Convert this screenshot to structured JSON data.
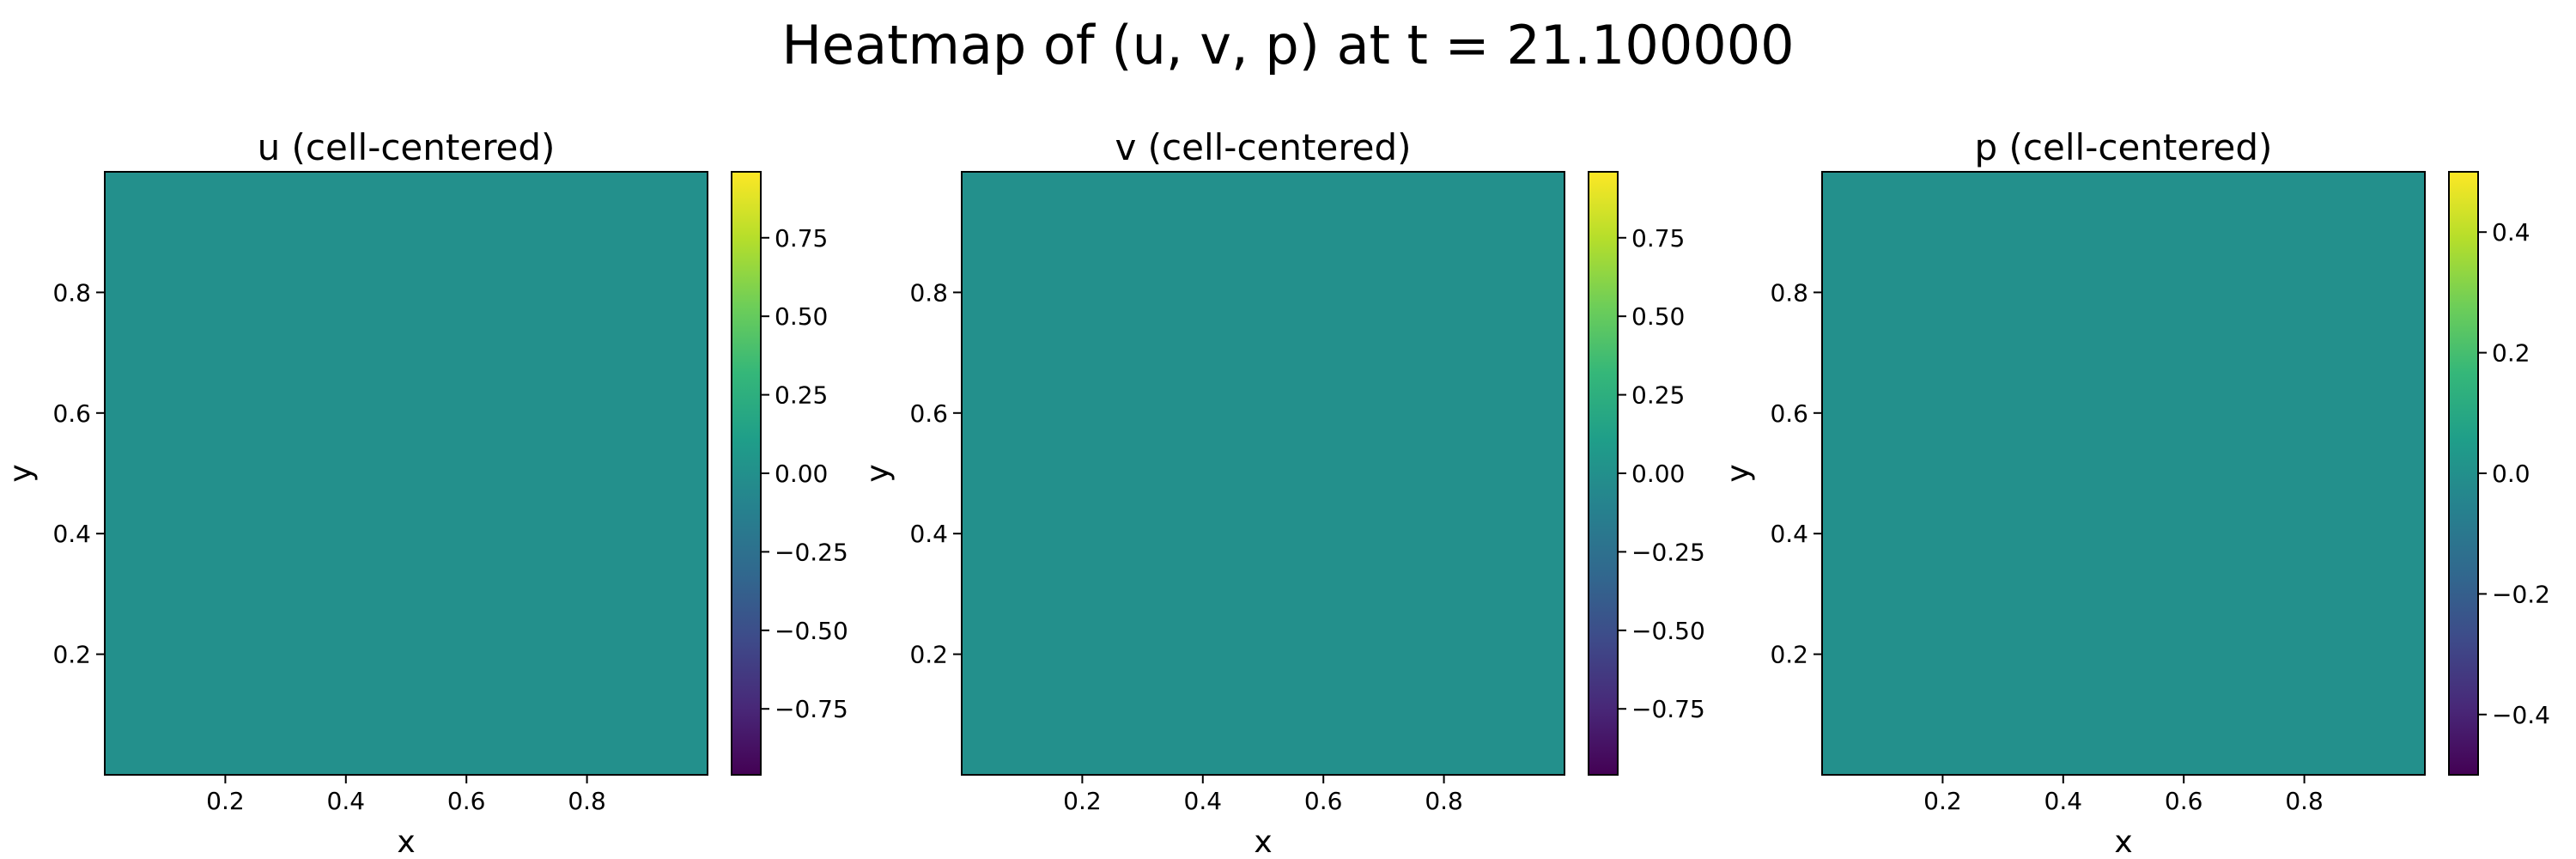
{
  "figure": {
    "title": "Heatmap of (u, v, p) at t = 21.100000"
  },
  "colormap": {
    "name": "viridis",
    "stops": [
      "#440154",
      "#482878",
      "#3e4a89",
      "#31688e",
      "#26828e",
      "#1f9e89",
      "#35b779",
      "#6ece58",
      "#b5de2b",
      "#fde725"
    ]
  },
  "chart_data": [
    {
      "type": "heatmap",
      "title": "u (cell-centered)",
      "xlabel": "x",
      "ylabel": "y",
      "xlim": [
        0,
        1
      ],
      "ylim": [
        0,
        1
      ],
      "xticks": [
        0.2,
        0.4,
        0.6,
        0.8
      ],
      "yticks": [
        0.2,
        0.4,
        0.6,
        0.8
      ],
      "xtick_labels": [
        "0.2",
        "0.4",
        "0.6",
        "0.8"
      ],
      "ytick_labels": [
        "0.2",
        "0.4",
        "0.6",
        "0.8"
      ],
      "grid": false,
      "field_value": 0.0,
      "colorbar": {
        "vmin": -0.96,
        "vmax": 0.96,
        "ticks": [
          -0.75,
          -0.5,
          -0.25,
          0.0,
          0.25,
          0.5,
          0.75
        ],
        "tick_labels": [
          "−0.75",
          "−0.50",
          "−0.25",
          "0.00",
          "0.25",
          "0.50",
          "0.75"
        ]
      }
    },
    {
      "type": "heatmap",
      "title": "v (cell-centered)",
      "xlabel": "x",
      "ylabel": "y",
      "xlim": [
        0,
        1
      ],
      "ylim": [
        0,
        1
      ],
      "xticks": [
        0.2,
        0.4,
        0.6,
        0.8
      ],
      "yticks": [
        0.2,
        0.4,
        0.6,
        0.8
      ],
      "xtick_labels": [
        "0.2",
        "0.4",
        "0.6",
        "0.8"
      ],
      "ytick_labels": [
        "0.2",
        "0.4",
        "0.6",
        "0.8"
      ],
      "grid": false,
      "field_value": 0.0,
      "colorbar": {
        "vmin": -0.96,
        "vmax": 0.96,
        "ticks": [
          -0.75,
          -0.5,
          -0.25,
          0.0,
          0.25,
          0.5,
          0.75
        ],
        "tick_labels": [
          "−0.75",
          "−0.50",
          "−0.25",
          "0.00",
          "0.25",
          "0.50",
          "0.75"
        ]
      }
    },
    {
      "type": "heatmap",
      "title": "p (cell-centered)",
      "xlabel": "x",
      "ylabel": "y",
      "xlim": [
        0,
        1
      ],
      "ylim": [
        0,
        1
      ],
      "xticks": [
        0.2,
        0.4,
        0.6,
        0.8
      ],
      "yticks": [
        0.2,
        0.4,
        0.6,
        0.8
      ],
      "xtick_labels": [
        "0.2",
        "0.4",
        "0.6",
        "0.8"
      ],
      "ytick_labels": [
        "0.2",
        "0.4",
        "0.6",
        "0.8"
      ],
      "grid": false,
      "field_value": 0.0,
      "colorbar": {
        "vmin": -0.5,
        "vmax": 0.5,
        "ticks": [
          -0.4,
          -0.2,
          0.0,
          0.2,
          0.4
        ],
        "tick_labels": [
          "−0.4",
          "−0.2",
          "0.0",
          "0.2",
          "0.4"
        ]
      }
    }
  ]
}
